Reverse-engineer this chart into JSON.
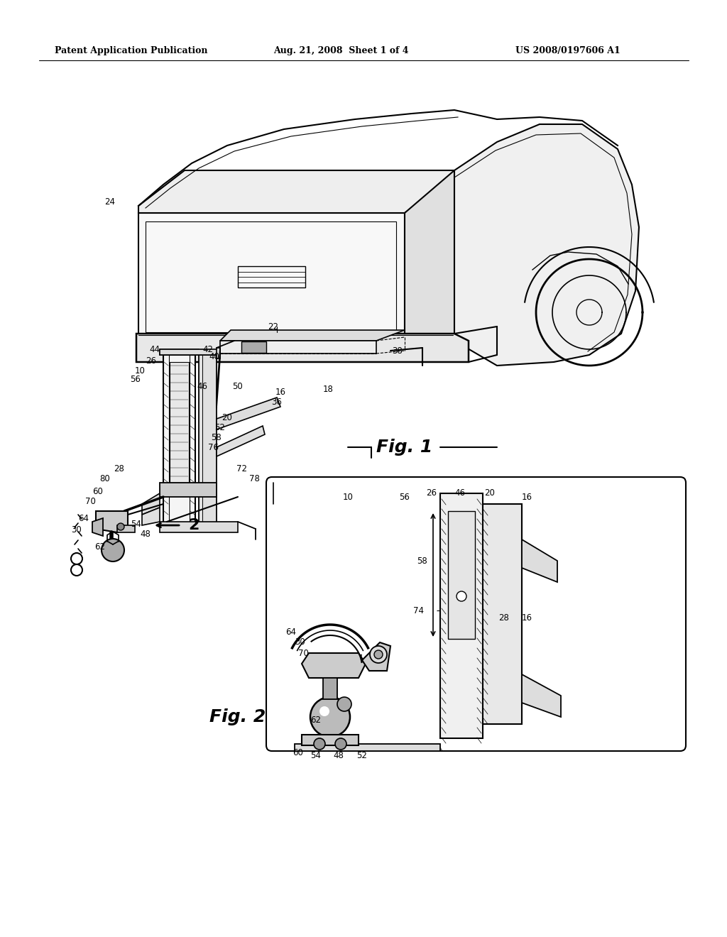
{
  "background_color": "#ffffff",
  "header_left": "Patent Application Publication",
  "header_center": "Aug. 21, 2008  Sheet 1 of 4",
  "header_right": "US 2008/0197606 A1",
  "fig1_label": "Fig. 1",
  "fig2_label": "Fig. 2",
  "fig_width": 10.24,
  "fig_height": 13.2,
  "dpi": 100
}
